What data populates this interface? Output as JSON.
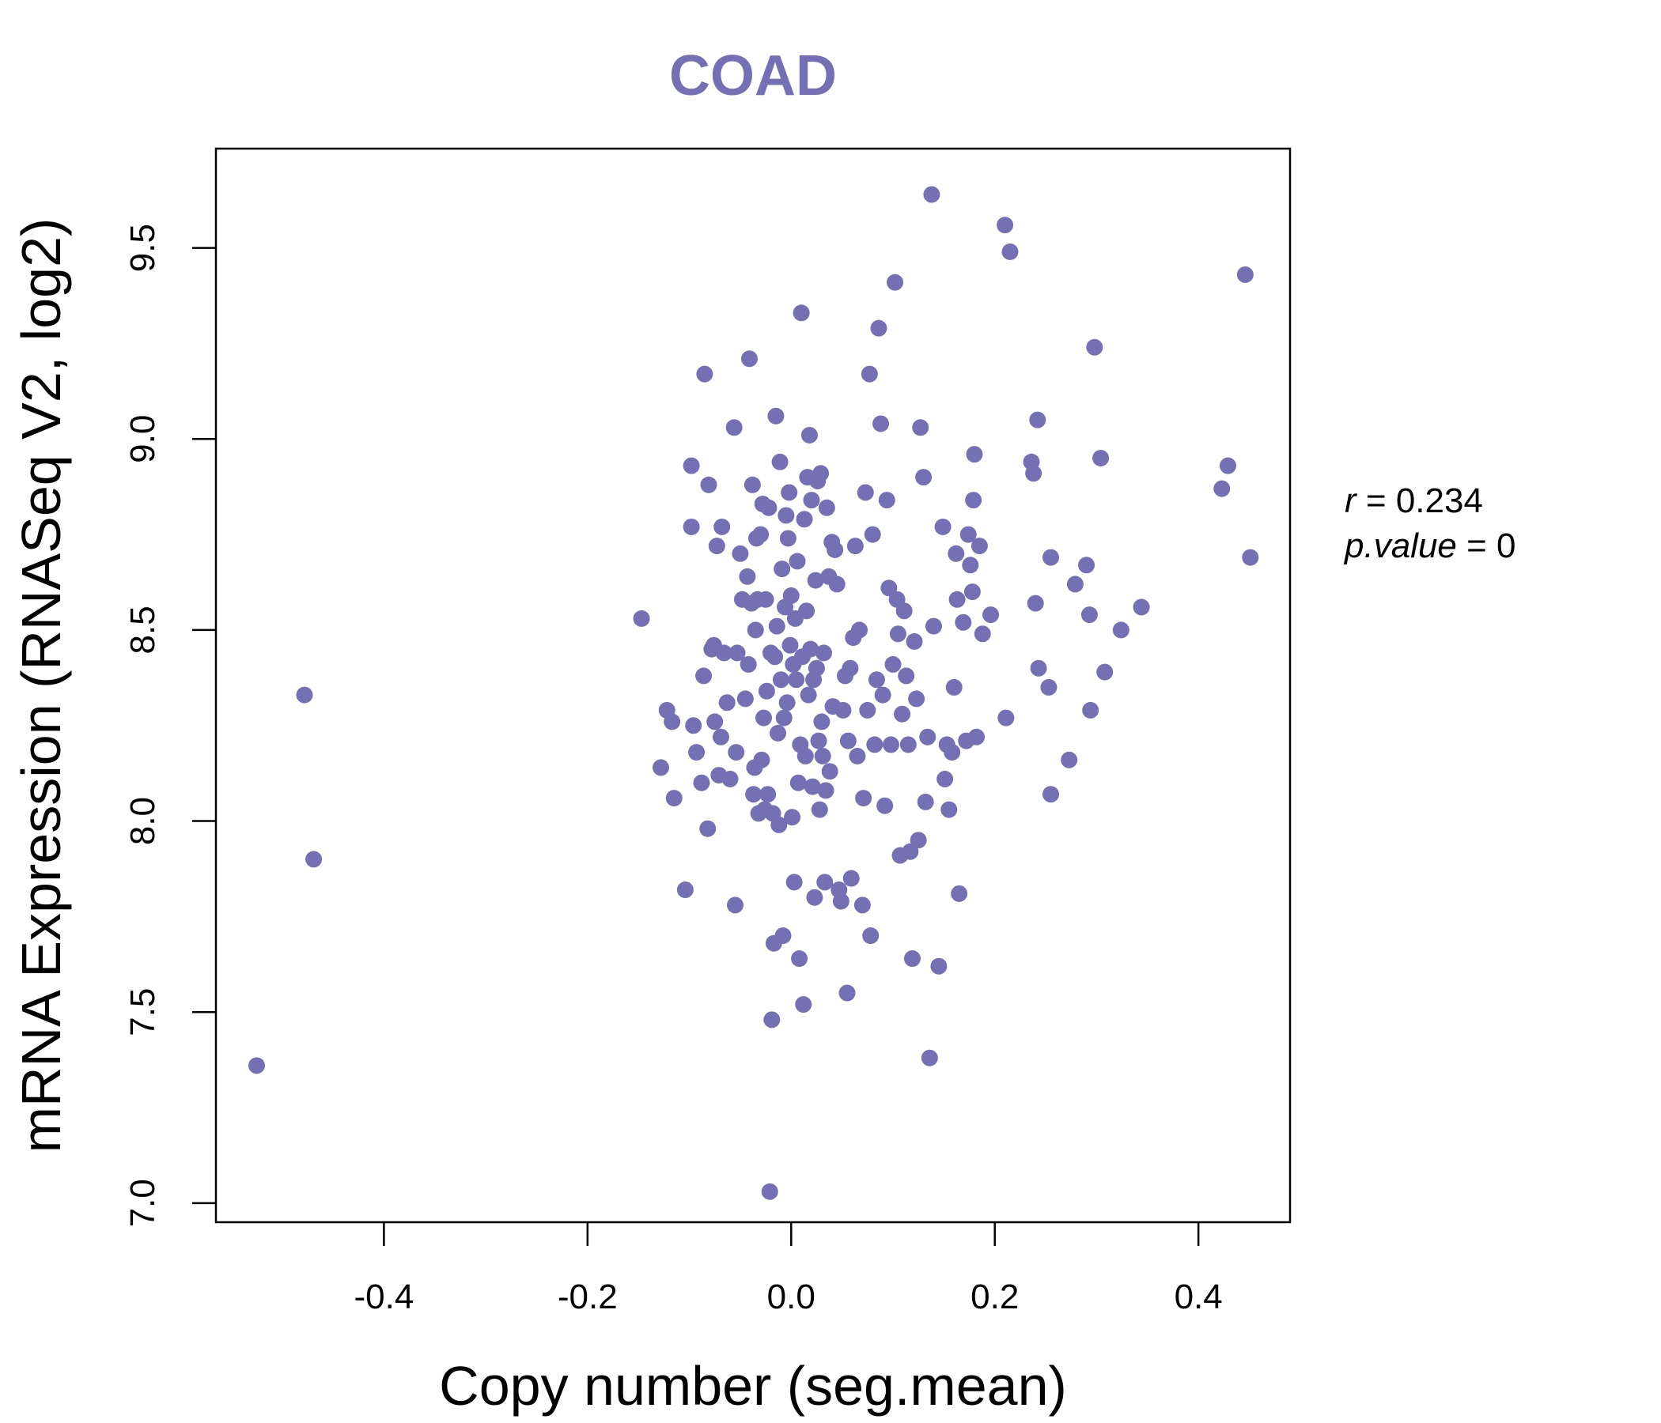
{
  "chart_data": {
    "type": "scatter",
    "title": "COAD",
    "xlabel": "Copy number (seg.mean)",
    "ylabel": "mRNA Expression (RNASeq V2, log2)",
    "xlim": [
      -0.565,
      0.49
    ],
    "ylim": [
      6.95,
      9.76
    ],
    "x_ticks": [
      -0.4,
      -0.2,
      0.0,
      0.2,
      0.4
    ],
    "x_tick_labels": [
      "-0.4",
      "-0.2",
      "0.0",
      "0.2",
      "0.4"
    ],
    "y_ticks": [
      7.0,
      7.5,
      8.0,
      8.5,
      9.0,
      9.5
    ],
    "y_tick_labels": [
      "7.0",
      "7.5",
      "8.0",
      "8.5",
      "9.0",
      "9.5"
    ],
    "grid": false,
    "legend": "none",
    "point_color": "#7570b3",
    "stats": {
      "r_label": "r",
      "r_value": "0.234",
      "p_label": "p.value",
      "p_value": "0"
    },
    "points": [
      [
        -0.525,
        7.36
      ],
      [
        -0.478,
        8.33
      ],
      [
        -0.469,
        7.9
      ],
      [
        -0.147,
        8.53
      ],
      [
        -0.128,
        8.14
      ],
      [
        -0.122,
        8.29
      ],
      [
        -0.117,
        8.26
      ],
      [
        -0.115,
        8.06
      ],
      [
        -0.104,
        7.82
      ],
      [
        -0.098,
        8.77
      ],
      [
        -0.098,
        8.93
      ],
      [
        -0.096,
        8.25
      ],
      [
        -0.093,
        8.18
      ],
      [
        -0.088,
        8.1
      ],
      [
        -0.086,
        8.38
      ],
      [
        -0.085,
        9.17
      ],
      [
        -0.082,
        7.98
      ],
      [
        -0.081,
        8.88
      ],
      [
        -0.078,
        8.45
      ],
      [
        -0.076,
        8.46
      ],
      [
        -0.075,
        8.26
      ],
      [
        -0.073,
        8.72
      ],
      [
        -0.071,
        8.12
      ],
      [
        -0.069,
        8.22
      ],
      [
        -0.068,
        8.77
      ],
      [
        -0.066,
        8.44
      ],
      [
        -0.063,
        8.31
      ],
      [
        -0.06,
        8.11
      ],
      [
        -0.056,
        9.03
      ],
      [
        -0.055,
        7.78
      ],
      [
        -0.054,
        8.18
      ],
      [
        -0.053,
        8.44
      ],
      [
        -0.05,
        8.7
      ],
      [
        -0.048,
        8.58
      ],
      [
        -0.045,
        8.32
      ],
      [
        -0.043,
        8.64
      ],
      [
        -0.042,
        8.41
      ],
      [
        -0.041,
        9.21
      ],
      [
        -0.039,
        8.57
      ],
      [
        -0.038,
        8.88
      ],
      [
        -0.037,
        8.07
      ],
      [
        -0.036,
        8.14
      ],
      [
        -0.035,
        8.5
      ],
      [
        -0.034,
        8.74
      ],
      [
        -0.033,
        8.58
      ],
      [
        -0.032,
        8.02
      ],
      [
        -0.03,
        8.75
      ],
      [
        -0.029,
        8.16
      ],
      [
        -0.028,
        8.83
      ],
      [
        -0.027,
        8.27
      ],
      [
        -0.026,
        8.03
      ],
      [
        -0.025,
        8.58
      ],
      [
        -0.024,
        8.34
      ],
      [
        -0.023,
        8.07
      ],
      [
        -0.022,
        8.82
      ],
      [
        -0.021,
        7.03
      ],
      [
        -0.02,
        8.44
      ],
      [
        -0.019,
        7.48
      ],
      [
        -0.018,
        8.02
      ],
      [
        -0.017,
        7.68
      ],
      [
        -0.016,
        8.43
      ],
      [
        -0.015,
        9.06
      ],
      [
        -0.014,
        8.51
      ],
      [
        -0.013,
        8.23
      ],
      [
        -0.012,
        7.99
      ],
      [
        -0.011,
        8.94
      ],
      [
        -0.01,
        8.37
      ],
      [
        -0.009,
        8.66
      ],
      [
        -0.008,
        7.7
      ],
      [
        -0.007,
        8.27
      ],
      [
        -0.006,
        8.56
      ],
      [
        -0.005,
        8.8
      ],
      [
        -0.004,
        8.31
      ],
      [
        -0.003,
        8.74
      ],
      [
        -0.002,
        8.86
      ],
      [
        -0.001,
        8.46
      ],
      [
        0.0,
        8.59
      ],
      [
        0.001,
        8.01
      ],
      [
        0.002,
        8.41
      ],
      [
        0.003,
        7.84
      ],
      [
        0.004,
        8.53
      ],
      [
        0.005,
        8.37
      ],
      [
        0.006,
        8.68
      ],
      [
        0.007,
        8.1
      ],
      [
        0.008,
        7.64
      ],
      [
        0.009,
        8.2
      ],
      [
        0.01,
        9.33
      ],
      [
        0.011,
        8.43
      ],
      [
        0.012,
        7.52
      ],
      [
        0.013,
        8.79
      ],
      [
        0.014,
        8.17
      ],
      [
        0.015,
        8.55
      ],
      [
        0.016,
        8.9
      ],
      [
        0.017,
        8.33
      ],
      [
        0.018,
        9.01
      ],
      [
        0.019,
        8.45
      ],
      [
        0.02,
        8.84
      ],
      [
        0.021,
        8.09
      ],
      [
        0.022,
        8.37
      ],
      [
        0.023,
        7.8
      ],
      [
        0.024,
        8.63
      ],
      [
        0.025,
        8.4
      ],
      [
        0.026,
        8.89
      ],
      [
        0.027,
        8.21
      ],
      [
        0.028,
        8.03
      ],
      [
        0.029,
        8.91
      ],
      [
        0.03,
        8.26
      ],
      [
        0.031,
        8.17
      ],
      [
        0.032,
        8.44
      ],
      [
        0.033,
        7.84
      ],
      [
        0.034,
        8.08
      ],
      [
        0.035,
        8.82
      ],
      [
        0.037,
        8.64
      ],
      [
        0.038,
        8.13
      ],
      [
        0.04,
        8.73
      ],
      [
        0.041,
        8.3
      ],
      [
        0.043,
        8.71
      ],
      [
        0.045,
        8.62
      ],
      [
        0.047,
        7.82
      ],
      [
        0.049,
        7.79
      ],
      [
        0.051,
        8.29
      ],
      [
        0.053,
        8.38
      ],
      [
        0.055,
        7.55
      ],
      [
        0.056,
        8.21
      ],
      [
        0.058,
        8.4
      ],
      [
        0.059,
        7.85
      ],
      [
        0.061,
        8.48
      ],
      [
        0.063,
        8.72
      ],
      [
        0.065,
        8.17
      ],
      [
        0.067,
        8.5
      ],
      [
        0.07,
        7.78
      ],
      [
        0.071,
        8.06
      ],
      [
        0.073,
        8.86
      ],
      [
        0.075,
        8.29
      ],
      [
        0.077,
        9.17
      ],
      [
        0.078,
        7.7
      ],
      [
        0.08,
        8.75
      ],
      [
        0.082,
        8.2
      ],
      [
        0.084,
        8.37
      ],
      [
        0.086,
        9.29
      ],
      [
        0.088,
        9.04
      ],
      [
        0.09,
        8.33
      ],
      [
        0.092,
        8.04
      ],
      [
        0.094,
        8.84
      ],
      [
        0.096,
        8.61
      ],
      [
        0.098,
        8.2
      ],
      [
        0.1,
        8.41
      ],
      [
        0.102,
        9.41
      ],
      [
        0.104,
        8.58
      ],
      [
        0.105,
        8.49
      ],
      [
        0.107,
        7.91
      ],
      [
        0.109,
        8.28
      ],
      [
        0.111,
        8.55
      ],
      [
        0.113,
        8.38
      ],
      [
        0.115,
        8.2
      ],
      [
        0.117,
        7.92
      ],
      [
        0.119,
        7.64
      ],
      [
        0.121,
        8.47
      ],
      [
        0.123,
        8.32
      ],
      [
        0.125,
        7.95
      ],
      [
        0.127,
        9.03
      ],
      [
        0.13,
        8.9
      ],
      [
        0.132,
        8.05
      ],
      [
        0.134,
        8.22
      ],
      [
        0.136,
        7.38
      ],
      [
        0.138,
        9.64
      ],
      [
        0.14,
        8.51
      ],
      [
        0.145,
        7.62
      ],
      [
        0.149,
        8.77
      ],
      [
        0.151,
        8.11
      ],
      [
        0.153,
        8.2
      ],
      [
        0.155,
        8.03
      ],
      [
        0.158,
        8.18
      ],
      [
        0.16,
        8.35
      ],
      [
        0.162,
        8.7
      ],
      [
        0.163,
        8.58
      ],
      [
        0.165,
        7.81
      ],
      [
        0.169,
        8.52
      ],
      [
        0.172,
        8.21
      ],
      [
        0.174,
        8.75
      ],
      [
        0.176,
        8.67
      ],
      [
        0.178,
        8.6
      ],
      [
        0.179,
        8.84
      ],
      [
        0.18,
        8.96
      ],
      [
        0.182,
        8.22
      ],
      [
        0.185,
        8.72
      ],
      [
        0.188,
        8.49
      ],
      [
        0.196,
        8.54
      ],
      [
        0.21,
        9.56
      ],
      [
        0.211,
        8.27
      ],
      [
        0.215,
        9.49
      ],
      [
        0.236,
        8.94
      ],
      [
        0.238,
        8.91
      ],
      [
        0.24,
        8.57
      ],
      [
        0.242,
        9.05
      ],
      [
        0.243,
        8.4
      ],
      [
        0.253,
        8.35
      ],
      [
        0.255,
        8.69
      ],
      [
        0.255,
        8.07
      ],
      [
        0.273,
        8.16
      ],
      [
        0.279,
        8.62
      ],
      [
        0.29,
        8.67
      ],
      [
        0.293,
        8.54
      ],
      [
        0.294,
        8.29
      ],
      [
        0.298,
        9.24
      ],
      [
        0.304,
        8.95
      ],
      [
        0.308,
        8.39
      ],
      [
        0.324,
        8.5
      ],
      [
        0.344,
        8.56
      ],
      [
        0.423,
        8.87
      ],
      [
        0.429,
        8.93
      ],
      [
        0.446,
        9.43
      ],
      [
        0.451,
        8.69
      ]
    ]
  }
}
